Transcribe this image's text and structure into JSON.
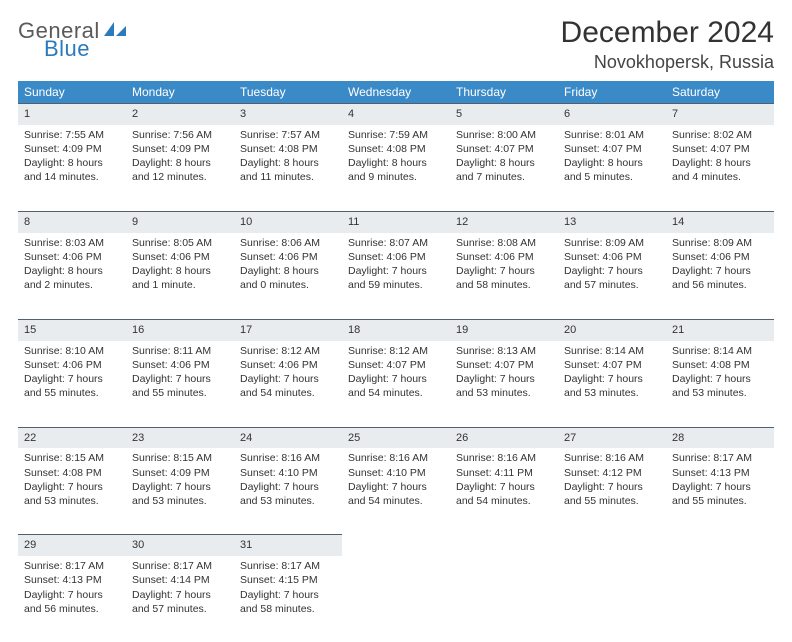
{
  "brand": {
    "word1": "General",
    "word2": "Blue"
  },
  "title": "December 2024",
  "location": "Novokhopersk, Russia",
  "colors": {
    "header_bg": "#3a8ac8",
    "header_text": "#ffffff",
    "daynum_bg": "#e9ecef",
    "rule": "#506070",
    "brand_gray": "#5a5a5a",
    "brand_blue": "#2a7bbd"
  },
  "weekdays": [
    "Sunday",
    "Monday",
    "Tuesday",
    "Wednesday",
    "Thursday",
    "Friday",
    "Saturday"
  ],
  "weeks": [
    [
      {
        "n": "1",
        "sr": "Sunrise: 7:55 AM",
        "ss": "Sunset: 4:09 PM",
        "d1": "Daylight: 8 hours",
        "d2": "and 14 minutes."
      },
      {
        "n": "2",
        "sr": "Sunrise: 7:56 AM",
        "ss": "Sunset: 4:09 PM",
        "d1": "Daylight: 8 hours",
        "d2": "and 12 minutes."
      },
      {
        "n": "3",
        "sr": "Sunrise: 7:57 AM",
        "ss": "Sunset: 4:08 PM",
        "d1": "Daylight: 8 hours",
        "d2": "and 11 minutes."
      },
      {
        "n": "4",
        "sr": "Sunrise: 7:59 AM",
        "ss": "Sunset: 4:08 PM",
        "d1": "Daylight: 8 hours",
        "d2": "and 9 minutes."
      },
      {
        "n": "5",
        "sr": "Sunrise: 8:00 AM",
        "ss": "Sunset: 4:07 PM",
        "d1": "Daylight: 8 hours",
        "d2": "and 7 minutes."
      },
      {
        "n": "6",
        "sr": "Sunrise: 8:01 AM",
        "ss": "Sunset: 4:07 PM",
        "d1": "Daylight: 8 hours",
        "d2": "and 5 minutes."
      },
      {
        "n": "7",
        "sr": "Sunrise: 8:02 AM",
        "ss": "Sunset: 4:07 PM",
        "d1": "Daylight: 8 hours",
        "d2": "and 4 minutes."
      }
    ],
    [
      {
        "n": "8",
        "sr": "Sunrise: 8:03 AM",
        "ss": "Sunset: 4:06 PM",
        "d1": "Daylight: 8 hours",
        "d2": "and 2 minutes."
      },
      {
        "n": "9",
        "sr": "Sunrise: 8:05 AM",
        "ss": "Sunset: 4:06 PM",
        "d1": "Daylight: 8 hours",
        "d2": "and 1 minute."
      },
      {
        "n": "10",
        "sr": "Sunrise: 8:06 AM",
        "ss": "Sunset: 4:06 PM",
        "d1": "Daylight: 8 hours",
        "d2": "and 0 minutes."
      },
      {
        "n": "11",
        "sr": "Sunrise: 8:07 AM",
        "ss": "Sunset: 4:06 PM",
        "d1": "Daylight: 7 hours",
        "d2": "and 59 minutes."
      },
      {
        "n": "12",
        "sr": "Sunrise: 8:08 AM",
        "ss": "Sunset: 4:06 PM",
        "d1": "Daylight: 7 hours",
        "d2": "and 58 minutes."
      },
      {
        "n": "13",
        "sr": "Sunrise: 8:09 AM",
        "ss": "Sunset: 4:06 PM",
        "d1": "Daylight: 7 hours",
        "d2": "and 57 minutes."
      },
      {
        "n": "14",
        "sr": "Sunrise: 8:09 AM",
        "ss": "Sunset: 4:06 PM",
        "d1": "Daylight: 7 hours",
        "d2": "and 56 minutes."
      }
    ],
    [
      {
        "n": "15",
        "sr": "Sunrise: 8:10 AM",
        "ss": "Sunset: 4:06 PM",
        "d1": "Daylight: 7 hours",
        "d2": "and 55 minutes."
      },
      {
        "n": "16",
        "sr": "Sunrise: 8:11 AM",
        "ss": "Sunset: 4:06 PM",
        "d1": "Daylight: 7 hours",
        "d2": "and 55 minutes."
      },
      {
        "n": "17",
        "sr": "Sunrise: 8:12 AM",
        "ss": "Sunset: 4:06 PM",
        "d1": "Daylight: 7 hours",
        "d2": "and 54 minutes."
      },
      {
        "n": "18",
        "sr": "Sunrise: 8:12 AM",
        "ss": "Sunset: 4:07 PM",
        "d1": "Daylight: 7 hours",
        "d2": "and 54 minutes."
      },
      {
        "n": "19",
        "sr": "Sunrise: 8:13 AM",
        "ss": "Sunset: 4:07 PM",
        "d1": "Daylight: 7 hours",
        "d2": "and 53 minutes."
      },
      {
        "n": "20",
        "sr": "Sunrise: 8:14 AM",
        "ss": "Sunset: 4:07 PM",
        "d1": "Daylight: 7 hours",
        "d2": "and 53 minutes."
      },
      {
        "n": "21",
        "sr": "Sunrise: 8:14 AM",
        "ss": "Sunset: 4:08 PM",
        "d1": "Daylight: 7 hours",
        "d2": "and 53 minutes."
      }
    ],
    [
      {
        "n": "22",
        "sr": "Sunrise: 8:15 AM",
        "ss": "Sunset: 4:08 PM",
        "d1": "Daylight: 7 hours",
        "d2": "and 53 minutes."
      },
      {
        "n": "23",
        "sr": "Sunrise: 8:15 AM",
        "ss": "Sunset: 4:09 PM",
        "d1": "Daylight: 7 hours",
        "d2": "and 53 minutes."
      },
      {
        "n": "24",
        "sr": "Sunrise: 8:16 AM",
        "ss": "Sunset: 4:10 PM",
        "d1": "Daylight: 7 hours",
        "d2": "and 53 minutes."
      },
      {
        "n": "25",
        "sr": "Sunrise: 8:16 AM",
        "ss": "Sunset: 4:10 PM",
        "d1": "Daylight: 7 hours",
        "d2": "and 54 minutes."
      },
      {
        "n": "26",
        "sr": "Sunrise: 8:16 AM",
        "ss": "Sunset: 4:11 PM",
        "d1": "Daylight: 7 hours",
        "d2": "and 54 minutes."
      },
      {
        "n": "27",
        "sr": "Sunrise: 8:16 AM",
        "ss": "Sunset: 4:12 PM",
        "d1": "Daylight: 7 hours",
        "d2": "and 55 minutes."
      },
      {
        "n": "28",
        "sr": "Sunrise: 8:17 AM",
        "ss": "Sunset: 4:13 PM",
        "d1": "Daylight: 7 hours",
        "d2": "and 55 minutes."
      }
    ],
    [
      {
        "n": "29",
        "sr": "Sunrise: 8:17 AM",
        "ss": "Sunset: 4:13 PM",
        "d1": "Daylight: 7 hours",
        "d2": "and 56 minutes."
      },
      {
        "n": "30",
        "sr": "Sunrise: 8:17 AM",
        "ss": "Sunset: 4:14 PM",
        "d1": "Daylight: 7 hours",
        "d2": "and 57 minutes."
      },
      {
        "n": "31",
        "sr": "Sunrise: 8:17 AM",
        "ss": "Sunset: 4:15 PM",
        "d1": "Daylight: 7 hours",
        "d2": "and 58 minutes."
      },
      null,
      null,
      null,
      null
    ]
  ]
}
